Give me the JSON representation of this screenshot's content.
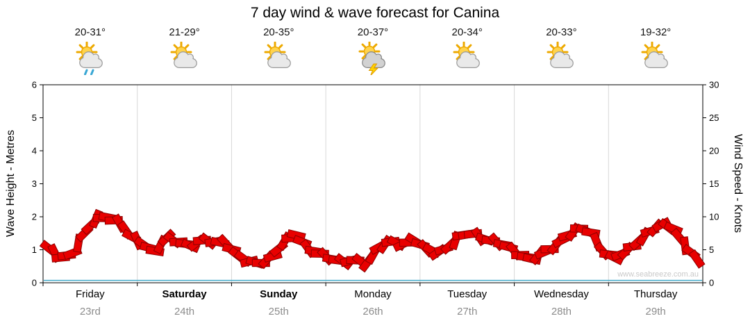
{
  "title": "7 day wind & wave forecast for Canina",
  "watermark": "www.seabreeze.com.au",
  "days": [
    {
      "name": "Friday",
      "date": "23rd",
      "temp": "20-31°",
      "icon": "sun-showers",
      "bold": false
    },
    {
      "name": "Saturday",
      "date": "24th",
      "temp": "21-29°",
      "icon": "sun-cloud",
      "bold": true
    },
    {
      "name": "Sunday",
      "date": "25th",
      "temp": "20-35°",
      "icon": "sun-cloud",
      "bold": true
    },
    {
      "name": "Monday",
      "date": "26th",
      "temp": "20-37°",
      "icon": "thunderstorm",
      "bold": false
    },
    {
      "name": "Tuesday",
      "date": "27th",
      "temp": "20-34°",
      "icon": "sun-cloud",
      "bold": false
    },
    {
      "name": "Wednesday",
      "date": "28th",
      "temp": "20-33°",
      "icon": "sun-cloud",
      "bold": false
    },
    {
      "name": "Thursday",
      "date": "29th",
      "temp": "19-32°",
      "icon": "sun-cloud",
      "bold": false
    }
  ],
  "chart_data": {
    "type": "bar",
    "subtype": "wind-barb-ribbon",
    "x_categories": [
      "Friday 23rd",
      "Saturday 24th",
      "Sunday 25th",
      "Monday 26th",
      "Tuesday 27th",
      "Wednesday 28th",
      "Thursday 29th"
    ],
    "y_left": {
      "label": "Wave Height - Metres",
      "min": 0,
      "max": 6,
      "ticks": [
        0,
        1,
        2,
        3,
        4,
        5,
        6
      ]
    },
    "y_right": {
      "label": "Wind Speed - Knots",
      "min": 0,
      "max": 30,
      "ticks": [
        0,
        5,
        10,
        15,
        20,
        25,
        30
      ]
    },
    "grid": "vertical-day-boundaries",
    "legend": "none",
    "series": [
      {
        "name": "Wind Speed",
        "unit": "knots",
        "axis": "right",
        "samples_per_day": 8,
        "values": [
          5.2,
          3.8,
          4.5,
          7.5,
          9.7,
          9.9,
          9.0,
          7.0,
          5.8,
          4.8,
          6.8,
          6.2,
          5.6,
          6.4,
          6.2,
          6.0,
          4.2,
          3.2,
          3.0,
          4.0,
          6.3,
          7.2,
          5.2,
          4.4,
          3.6,
          3.2,
          3.4,
          3.0,
          5.4,
          6.2,
          5.8,
          6.4,
          5.2,
          4.6,
          5.6,
          7.2,
          7.4,
          6.6,
          6.2,
          5.4,
          4.2,
          3.6,
          4.6,
          5.6,
          7.2,
          8.2,
          7.6,
          4.8,
          3.8,
          4.8,
          6.2,
          7.8,
          8.8,
          8.2,
          5.6,
          3.6
        ]
      },
      {
        "name": "Wave Height",
        "unit": "metres",
        "axis": "left",
        "flat_value": 0.07
      }
    ],
    "colors": {
      "barb_fill": "#e80000",
      "barb_edge": "#8b0000",
      "grid": "#d8d8d8",
      "frame": "#000000",
      "date_text": "#8c8c8c",
      "watermark": "#c9c9c9",
      "wave_line": "#3fa8c9"
    }
  }
}
